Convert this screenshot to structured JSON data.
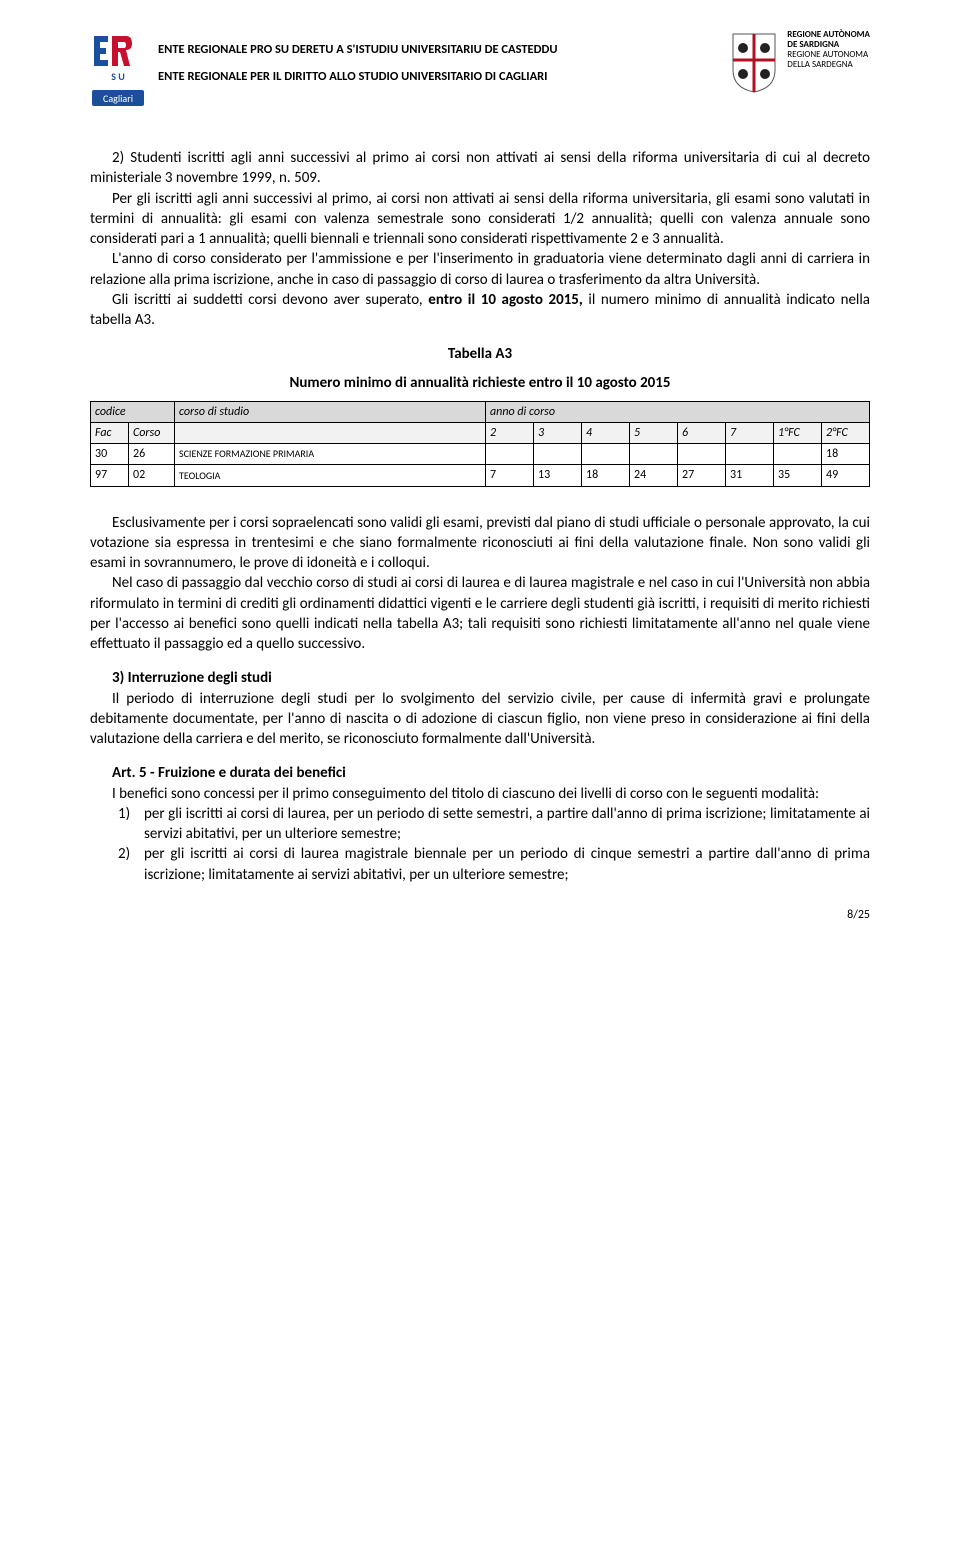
{
  "header": {
    "title_sardinian": "ENTE REGIONALE PRO SU DERETU A S'ISTUDIU UNIVERSITARIU DE CASTEDDU",
    "title_italian": "ENTE REGIONALE PER IL DIRITTO ALLO STUDIO UNIVERSITARIO DI CAGLIARI",
    "logo_left_text": "ERSU",
    "logo_left_sub": "Cagliari",
    "region_line1": "REGIONE AUTÒNOMA",
    "region_line2": "DE SARDIGNA",
    "region_line3": "REGIONE AUTONOMA",
    "region_line4": "DELLA SARDEGNA"
  },
  "body": {
    "p1": "2) Studenti iscritti agli anni successivi al primo ai corsi non attivati ai sensi della riforma universitaria di cui al decreto ministeriale 3 novembre 1999, n. 509.",
    "p2": "Per gli iscritti agli anni successivi al primo, ai corsi non attivati ai sensi della riforma universitaria, gli esami sono valutati in termini di annualità: gli esami con valenza semestrale sono considerati 1/2 annualità; quelli con valenza annuale sono considerati pari a 1 annualità; quelli biennali e triennali sono considerati rispettivamente 2 e 3 annualità.",
    "p3": "L'anno di corso considerato per l'ammissione e per l'inserimento in graduatoria viene determinato dagli anni di carriera in relazione alla prima iscrizione, anche in caso di passaggio di corso di laurea o trasferimento da altra Università.",
    "p4_a": "Gli iscritti ai suddetti corsi devono aver superato, ",
    "p4_b": "entro il 10 agosto 2015,",
    "p4_c": " il numero minimo di annualità indicato nella tabella A3.",
    "table_title": "Tabella A3",
    "table_subtitle": "Numero minimo di annualità richieste entro il 10 agosto 2015",
    "p5": "Esclusivamente per i corsi sopraelencati sono validi gli esami, previsti dal piano di studi ufficiale o personale approvato, la cui votazione sia espressa in trentesimi e che siano formalmente riconosciuti ai fini della valutazione finale. Non sono validi gli esami in sovrannumero, le prove di idoneità e i colloqui.",
    "p6": "Nel caso di passaggio dal vecchio corso di studi ai corsi di laurea e di laurea magistrale e nel caso in cui l'Università non abbia riformulato in termini di crediti gli ordinamenti didattici vigenti e le carriere degli studenti già iscritti, i requisiti di merito richiesti per l'accesso ai benefici sono quelli indicati nella tabella A3; tali requisiti sono richiesti limitatamente all'anno nel quale viene effettuato il passaggio ed a quello successivo.",
    "h3": "3) Interruzione degli studi",
    "p7": "Il periodo di interruzione degli studi per lo svolgimento del servizio civile, per cause di infermità gravi e prolungate debitamente documentate, per l'anno di nascita o di adozione di ciascun figlio, non viene preso in considerazione ai fini della valutazione della carriera e del merito, se riconosciuto formalmente dall'Università.",
    "h5": "Art. 5 - Fruizione e durata dei benefici",
    "p8": "I benefici sono concessi per il primo conseguimento del titolo di ciascuno dei livelli di corso con le seguenti modalità:",
    "li1_num": "1)",
    "li1": "per gli iscritti ai corsi di laurea, per un periodo di sette semestri, a partire dall'anno di prima iscrizione; limitatamente ai servizi abitativi, per un ulteriore semestre;",
    "li2_num": "2)",
    "li2": "per gli iscritti ai corsi di laurea magistrale biennale per un periodo di cinque semestri a partire dall'anno di prima iscrizione; limitatamente ai servizi abitativi, per un ulteriore semestre;"
  },
  "table": {
    "h_codice": "codice",
    "h_corso": "corso di studio",
    "h_anno": "anno di corso",
    "sub_fac": "Fac",
    "sub_corso": "Corso",
    "yrs": [
      "2",
      "3",
      "4",
      "5",
      "6",
      "7",
      "1°FC",
      "2°FC"
    ],
    "rows": [
      {
        "fac": "30",
        "corso": "26",
        "name": "SCIENZE FORMAZIONE PRIMARIA",
        "vals": [
          "",
          "",
          "",
          "",
          "",
          "",
          "",
          "18"
        ]
      },
      {
        "fac": "97",
        "corso": "02",
        "name": "TEOLOGIA",
        "vals": [
          "7",
          "13",
          "18",
          "24",
          "27",
          "31",
          "35",
          "49"
        ]
      }
    ]
  },
  "footer": {
    "page": "8/25"
  },
  "style": {
    "logo_blue": "#1a4f9c",
    "logo_red": "#c8102e",
    "crest_red": "#b01020",
    "header_bg": "#d9d9d9",
    "sub_bg": "#f2f2f2"
  }
}
